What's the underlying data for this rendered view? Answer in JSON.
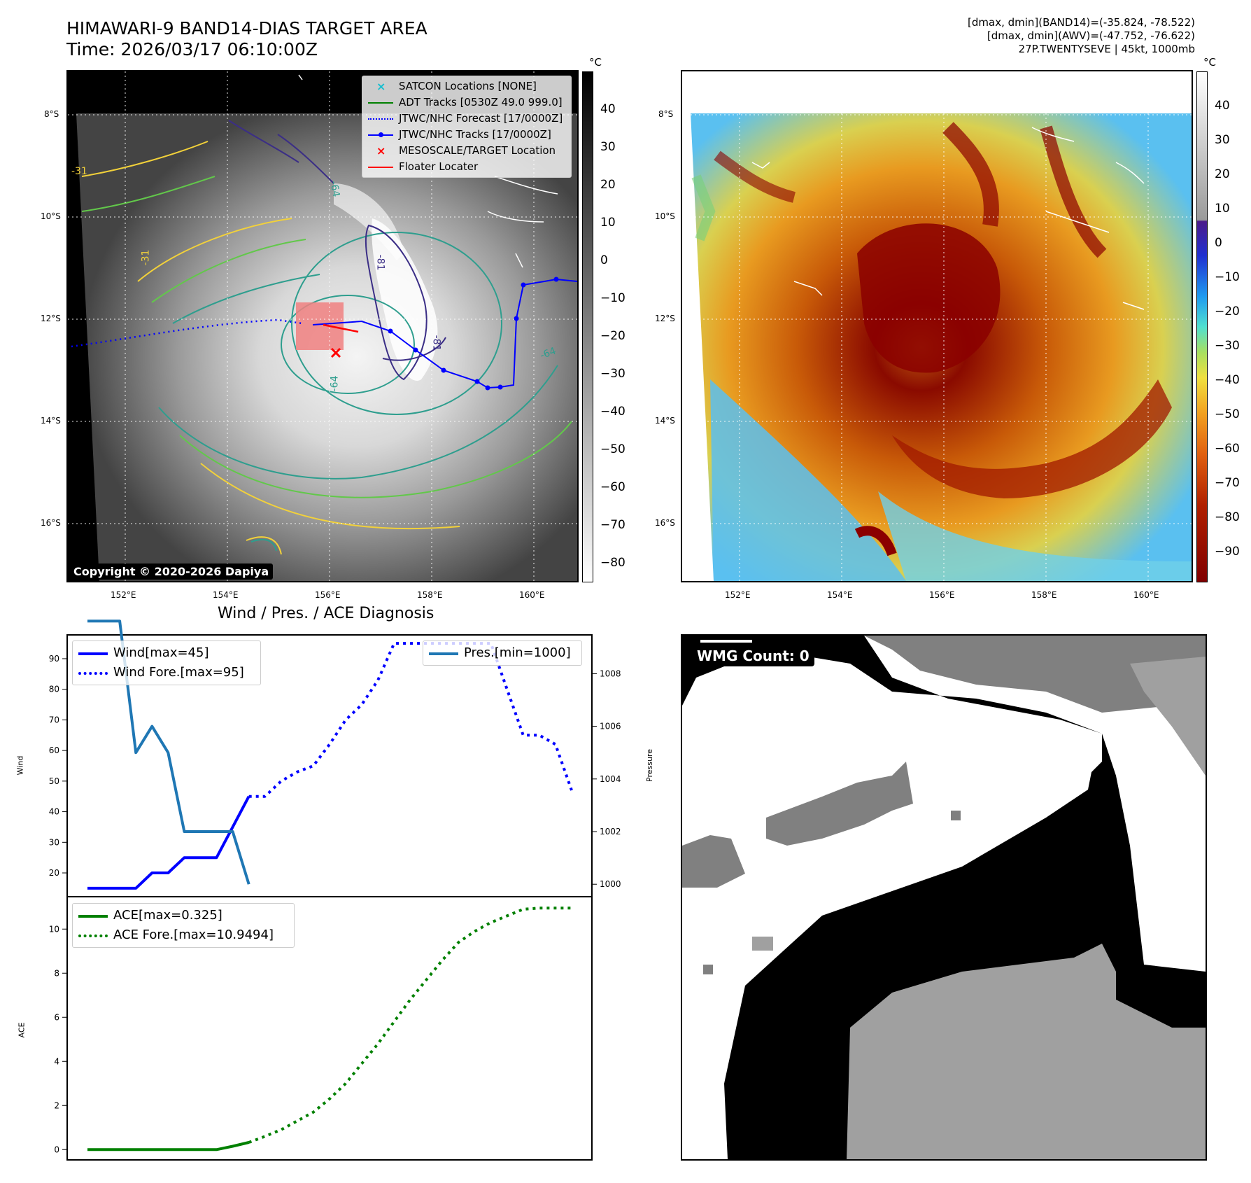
{
  "header": {
    "title_line1": "HIMAWARI-9 BAND14-DIAS TARGET AREA",
    "title_line2": "Time: 2026/03/17 06:10:00Z",
    "stats_line1": "[dmax, dmin](BAND14)=(-35.824, -78.522)",
    "stats_line2": "[dmax, dmin](AWV)=(-47.752, -76.622)",
    "stats_line3": "27P.TWENTYSEVE | 45kt, 1000mb"
  },
  "map": {
    "lat_labels": [
      "8°S",
      "10°S",
      "12°S",
      "14°S",
      "16°S"
    ],
    "lon_labels": [
      "152°E",
      "154°E",
      "156°E",
      "158°E",
      "160°E"
    ],
    "copyright": "Copyright © 2020-2026 Dapiya",
    "contour_labels": [
      "-64",
      "-81",
      "-64",
      "-81",
      "-64",
      "-31",
      "-31"
    ],
    "legend": [
      {
        "label": "SATCON Locations [NONE]",
        "color": "#17becf",
        "marker": "x"
      },
      {
        "label": "ADT Tracks [0530Z 49.0 999.0]",
        "color": "#008000",
        "marker": "line"
      },
      {
        "label": "JTWC/NHC Forecast [17/0000Z]",
        "color": "#0000ff",
        "marker": "dotted"
      },
      {
        "label": "JTWC/NHC Tracks [17/0000Z]",
        "color": "#0000ff",
        "marker": "line-dot"
      },
      {
        "label": "MESOSCALE/TARGET Location",
        "color": "#ff0000",
        "marker": "x"
      },
      {
        "label": "Floater Locater",
        "color": "#ff0000",
        "marker": "line"
      }
    ]
  },
  "colorbar_band14": {
    "unit": "°C",
    "ticks": [
      "40",
      "30",
      "20",
      "10",
      "0",
      "−10",
      "−20",
      "−30",
      "−40",
      "−50",
      "−60",
      "−70",
      "−80"
    ]
  },
  "colorbar_awv": {
    "unit": "°C",
    "ticks": [
      "40",
      "30",
      "20",
      "10",
      "0",
      "−10",
      "−20",
      "−30",
      "−40",
      "−50",
      "−60",
      "−70",
      "−80",
      "−90"
    ]
  },
  "diagnosis": {
    "title": "Wind / Pres. / ACE Diagnosis",
    "wind_ylabel": "Wind",
    "pres_ylabel": "Pressure",
    "ace_ylabel": "ACE",
    "wind_legend": [
      "Wind[max=45]",
      "Wind Fore.[max=95]"
    ],
    "pres_legend": "Pres.[min=1000]",
    "ace_legend": [
      "ACE[max=0.325]",
      "ACE Fore.[max=10.9494]"
    ]
  },
  "wmg": {
    "badge": "WMG Count: 0"
  },
  "chart_data": [
    {
      "type": "line",
      "title": "Wind / Pres. / ACE Diagnosis",
      "ylabel": "Wind",
      "ylim": [
        12,
        98
      ],
      "y_ticks": [
        20,
        30,
        40,
        50,
        60,
        70,
        80,
        90
      ],
      "series": [
        {
          "name": "Wind[max=45]",
          "color": "#0000ff",
          "style": "solid",
          "x": [
            0,
            1,
            2,
            3,
            4,
            5,
            6,
            7,
            8,
            9,
            10
          ],
          "values": [
            15,
            15,
            15,
            15,
            20,
            20,
            25,
            25,
            25,
            35,
            45
          ]
        },
        {
          "name": "Wind Fore.[max=95]",
          "color": "#0000ff",
          "style": "dotted",
          "x": [
            10,
            11,
            12,
            13,
            14,
            15,
            16,
            17,
            18,
            19,
            20,
            21,
            22,
            23,
            24,
            25,
            26,
            27,
            28,
            29,
            30
          ],
          "values": [
            45,
            45,
            50,
            53,
            55,
            62,
            70,
            75,
            83,
            95,
            95,
            95,
            95,
            95,
            95,
            95,
            80,
            65,
            65,
            62,
            47
          ]
        }
      ]
    },
    {
      "type": "line",
      "ylabel": "Pressure",
      "ylim": [
        999.5,
        1009.5
      ],
      "y_ticks": [
        1000,
        1002,
        1004,
        1006,
        1008
      ],
      "series": [
        {
          "name": "Pres.[min=1000]",
          "color": "#1f77b4",
          "style": "solid",
          "x": [
            0,
            1,
            2,
            3,
            4,
            5,
            6,
            7,
            8,
            9,
            10
          ],
          "values": [
            1010,
            1010,
            1010,
            1005,
            1006,
            1005,
            1002,
            1002,
            1002,
            1002,
            1000
          ]
        }
      ]
    },
    {
      "type": "line",
      "ylabel": "ACE",
      "ylim": [
        -0.5,
        11.5
      ],
      "y_ticks": [
        0,
        2,
        4,
        6,
        8,
        10
      ],
      "series": [
        {
          "name": "ACE[max=0.325]",
          "color": "#008000",
          "style": "solid",
          "x": [
            0,
            1,
            2,
            3,
            4,
            5,
            6,
            7,
            8,
            9,
            10
          ],
          "values": [
            0,
            0,
            0,
            0,
            0,
            0,
            0,
            0,
            0,
            0.15,
            0.325
          ]
        },
        {
          "name": "ACE Fore.[max=10.9494]",
          "color": "#008000",
          "style": "dotted",
          "x": [
            10,
            11,
            12,
            13,
            14,
            15,
            16,
            17,
            18,
            19,
            20,
            21,
            22,
            23,
            24,
            25,
            26,
            27,
            28,
            29,
            30
          ],
          "values": [
            0.325,
            0.6,
            0.9,
            1.3,
            1.7,
            2.3,
            3.0,
            3.9,
            4.8,
            5.8,
            6.8,
            7.7,
            8.6,
            9.4,
            9.9,
            10.3,
            10.6,
            10.9,
            10.95,
            10.95,
            10.95
          ]
        }
      ]
    }
  ]
}
